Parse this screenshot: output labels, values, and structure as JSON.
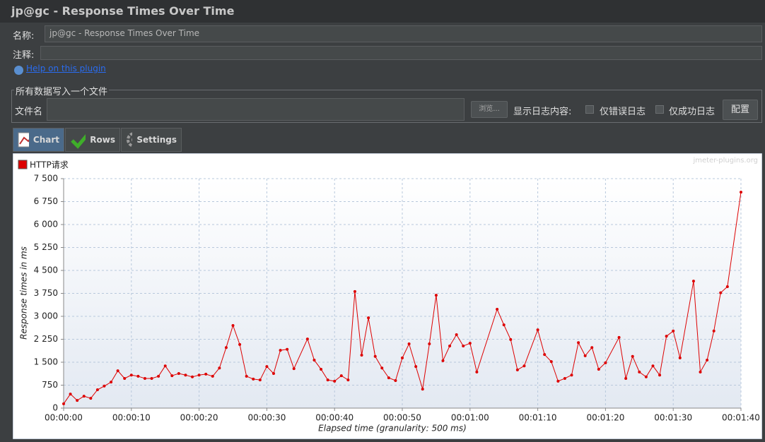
{
  "header": {
    "title": "jp@gc - Response Times Over Time"
  },
  "form": {
    "name_label": "名称:",
    "name_value": "jp@gc - Response Times Over Time",
    "comment_label": "注释:",
    "help_link": "Help on this plugin"
  },
  "file_section": {
    "legend": "所有数据写入一个文件",
    "file_label": "文件名",
    "browse_button": "浏览...",
    "log_label": "显示日志内容:",
    "errors_only": "仅错误日志",
    "success_only": "仅成功日志",
    "config_button": "配置"
  },
  "tabs": [
    "Chart",
    "Rows",
    "Settings"
  ],
  "watermark": "jmeter-plugins.org",
  "chart_data": {
    "type": "line",
    "xlabel": "Elapsed time (granularity: 500 ms)",
    "ylabel": "Response times in ms",
    "x": [
      0,
      1,
      2,
      3,
      4,
      5,
      6,
      7,
      8,
      9,
      10,
      11,
      12,
      13,
      14,
      15,
      16,
      17,
      18,
      19,
      20,
      21,
      22,
      23,
      24,
      25,
      26,
      27,
      28,
      29,
      30,
      31,
      32,
      33,
      34,
      36,
      37,
      38,
      39,
      40,
      41,
      42,
      43,
      44,
      45,
      46,
      47,
      48,
      49,
      50,
      51,
      52,
      53,
      54,
      55,
      56,
      57,
      58,
      59,
      60,
      61,
      64,
      65,
      66,
      67,
      68,
      70,
      71,
      72,
      73,
      74,
      75,
      76,
      77,
      78,
      79,
      80,
      82,
      83,
      84,
      85,
      86,
      87,
      88,
      89,
      90,
      91,
      93,
      94,
      95,
      96,
      97,
      98,
      100
    ],
    "series": [
      {
        "name": "HTTP请求",
        "color": "#dd0000",
        "values": [
          140,
          460,
          250,
          390,
          320,
          600,
          720,
          850,
          1220,
          970,
          1080,
          1040,
          970,
          970,
          1040,
          1380,
          1060,
          1130,
          1080,
          1020,
          1080,
          1110,
          1040,
          1310,
          1980,
          2700,
          2080,
          1040,
          950,
          920,
          1360,
          1130,
          1890,
          1920,
          1290,
          2260,
          1570,
          1270,
          920,
          880,
          1060,
          920,
          3810,
          1730,
          2950,
          1690,
          1310,
          990,
          900,
          1640,
          2100,
          1360,
          620,
          2100,
          3690,
          1550,
          2030,
          2400,
          2030,
          2120,
          1180,
          3230,
          2720,
          2240,
          1250,
          1380,
          2560,
          1750,
          1520,
          880,
          970,
          1080,
          2140,
          1710,
          1980,
          1270,
          1480,
          2310,
          970,
          1690,
          1180,
          1020,
          1380,
          1080,
          2350,
          2520,
          1640,
          4150,
          1180,
          1570,
          2520,
          3770,
          3970,
          7060
        ]
      }
    ],
    "xlim": [
      0,
      100
    ],
    "xticks": [
      {
        "value": 0,
        "label": "00:00:00"
      },
      {
        "value": 10,
        "label": "00:00:10"
      },
      {
        "value": 20,
        "label": "00:00:20"
      },
      {
        "value": 30,
        "label": "00:00:30"
      },
      {
        "value": 40,
        "label": "00:00:40"
      },
      {
        "value": 50,
        "label": "00:00:50"
      },
      {
        "value": 60,
        "label": "00:01:00"
      },
      {
        "value": 70,
        "label": "00:01:10"
      },
      {
        "value": 80,
        "label": "00:01:20"
      },
      {
        "value": 90,
        "label": "00:01:30"
      },
      {
        "value": 100,
        "label": "00:01:40"
      }
    ],
    "ylim": [
      0,
      7500
    ],
    "yticks": [
      0,
      750,
      {
        "value": 1500,
        "label": "1 500"
      },
      {
        "value": 2250,
        "label": "2 250"
      },
      {
        "value": 3000,
        "label": "3 000"
      },
      {
        "value": 3750,
        "label": "3 750"
      },
      {
        "value": 4500,
        "label": "4 500"
      },
      {
        "value": 5250,
        "label": "5 250"
      },
      {
        "value": 6000,
        "label": "6 000"
      },
      {
        "value": 6750,
        "label": "6 750"
      },
      {
        "value": 7500,
        "label": "7 500"
      }
    ],
    "grid": true,
    "legend": "upper left"
  }
}
